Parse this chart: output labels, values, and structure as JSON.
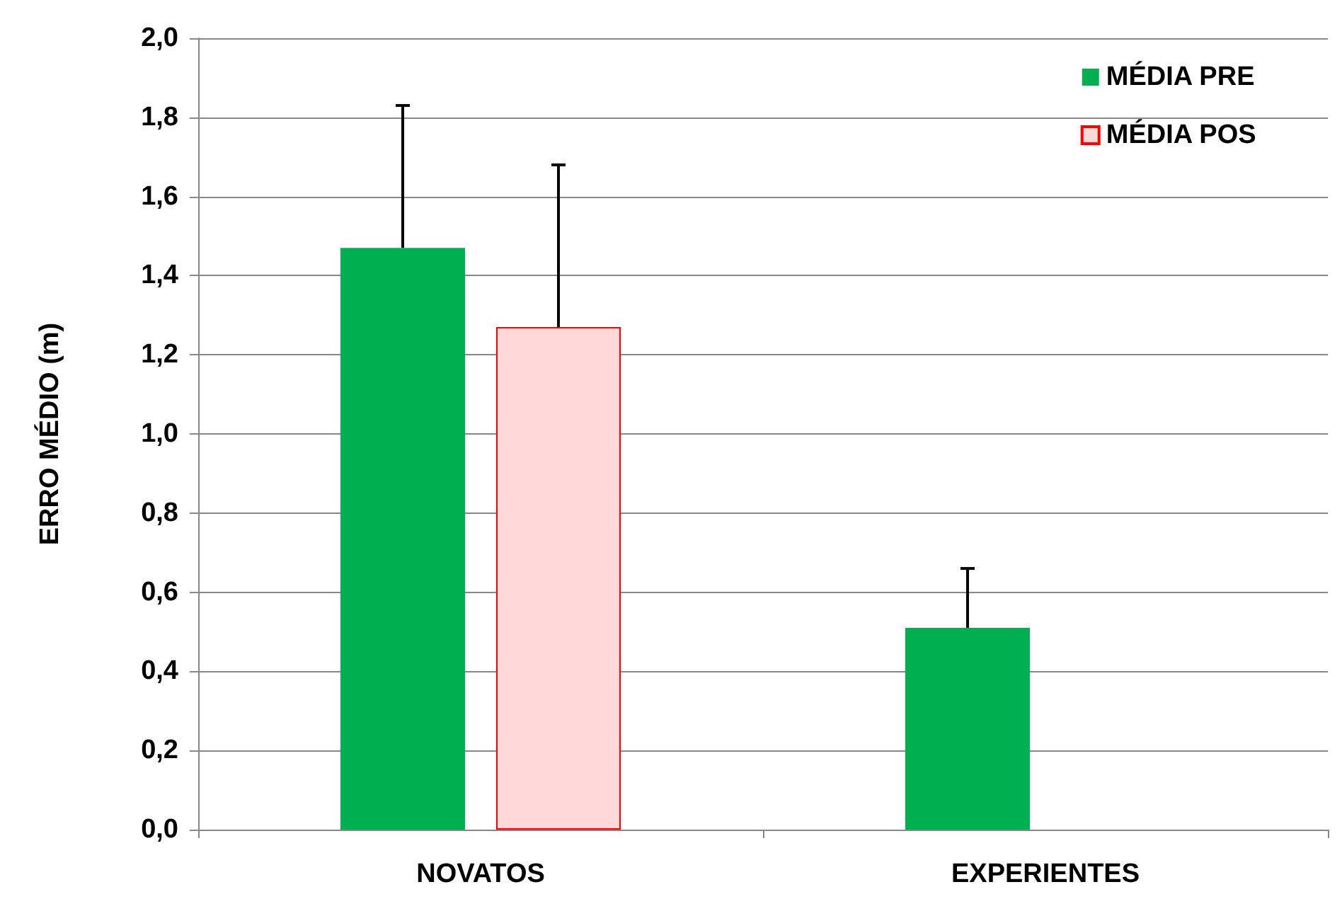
{
  "chart_data": {
    "type": "bar",
    "ylabel": "ERRO MÉDIO (m)",
    "categories": [
      "NOVATOS",
      "EXPERIENTES"
    ],
    "series": [
      {
        "name": "MÉDIA PRE",
        "color": "#00b050",
        "values": [
          1.47,
          0.51
        ],
        "errors": [
          [
            1.47,
            1.83
          ],
          [
            0.51,
            0.66
          ]
        ]
      },
      {
        "name": "MÉDIA POS",
        "color": "#ffd9d9",
        "values": [
          1.27,
          null
        ],
        "errors": [
          [
            1.27,
            1.68
          ],
          null
        ]
      }
    ],
    "ylim": [
      0,
      2
    ],
    "yticks": [
      {
        "value": 0,
        "label": "0,0"
      },
      {
        "value": 0.2,
        "label": "0,2"
      },
      {
        "value": 0.4,
        "label": "0,4"
      },
      {
        "value": 0.6,
        "label": "0,6"
      },
      {
        "value": 0.8,
        "label": "0,8"
      },
      {
        "value": 1,
        "label": "1,0"
      },
      {
        "value": 1.2,
        "label": "1,2"
      },
      {
        "value": 1.4,
        "label": "1,4"
      },
      {
        "value": 1.6,
        "label": "1,6"
      },
      {
        "value": 1.8,
        "label": "1,8"
      },
      {
        "value": 2,
        "label": "2,0"
      }
    ],
    "grid": "y",
    "legend": "top right"
  }
}
